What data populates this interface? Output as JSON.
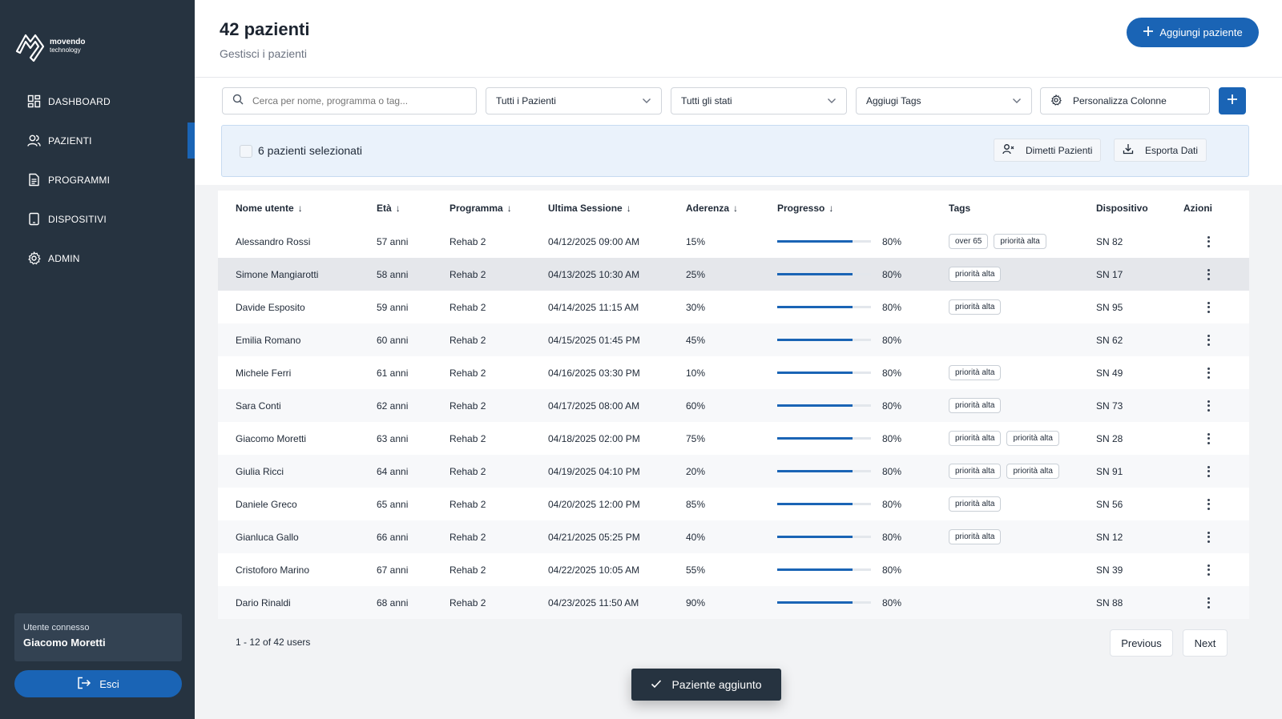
{
  "brand": {
    "name": "movendo",
    "sub": "technology"
  },
  "sidebar": {
    "items": [
      {
        "label": "DASHBOARD",
        "icon": "dashboard-icon"
      },
      {
        "label": "PAZIENTI",
        "icon": "users-icon",
        "active": true
      },
      {
        "label": "PROGRAMMI",
        "icon": "document-icon"
      },
      {
        "label": "DISPOSITIVI",
        "icon": "tablet-icon"
      },
      {
        "label": "ADMIN",
        "icon": "gear-icon"
      }
    ],
    "user_label": "Utente connesso",
    "user_name": "Giacomo Moretti",
    "logout_label": "Esci"
  },
  "header": {
    "title": "42 pazienti",
    "subtitle": "Gestisci i pazienti",
    "add_label": "Aggiungi paziente"
  },
  "filters": {
    "search_placeholder": "Cerca per nome, programma o tag...",
    "patients_select": "Tutti i Pazienti",
    "status_select": "Tutti gli stati",
    "tags_select": "Aggiugi Tags",
    "columns_label": "Personalizza Colonne"
  },
  "selection": {
    "text": "6 pazienti selezionati",
    "discharge_label": "Dimetti Pazienti",
    "export_label": "Esporta Dati"
  },
  "table": {
    "headers": {
      "name": "Nome utente",
      "age": "Età",
      "program": "Programma",
      "last_session": "Ultima Sessione",
      "adherence": "Aderenza",
      "progress": "Progresso",
      "tags": "Tags",
      "device": "Dispositivo",
      "actions": "Azioni"
    },
    "rows": [
      {
        "name": "Alessandro Rossi",
        "age": "57 anni",
        "program": "Rehab 2",
        "session": "04/12/2025 09:00 AM",
        "adherence": "15%",
        "progress": 0.8,
        "progress_label": "80%",
        "tags": [
          "over 65",
          "priorità alta"
        ],
        "device": "SN 82"
      },
      {
        "name": "Simone Mangiarotti",
        "age": "58 anni",
        "program": "Rehab 2",
        "session": "04/13/2025 10:30 AM",
        "adherence": "25%",
        "progress": 0.8,
        "progress_label": "80%",
        "tags": [
          "priorità alta"
        ],
        "device": "SN 17",
        "highlight": true
      },
      {
        "name": "Davide Esposito",
        "age": "59 anni",
        "program": "Rehab 2",
        "session": "04/14/2025 11:15 AM",
        "adherence": "30%",
        "progress": 0.8,
        "progress_label": "80%",
        "tags": [
          "priorità alta"
        ],
        "device": "SN 95"
      },
      {
        "name": "Emilia Romano",
        "age": "60 anni",
        "program": "Rehab 2",
        "session": "04/15/2025 01:45 PM",
        "adherence": "45%",
        "progress": 0.8,
        "progress_label": "80%",
        "tags": [],
        "device": "SN 62"
      },
      {
        "name": "Michele Ferri",
        "age": "61 anni",
        "program": "Rehab 2",
        "session": "04/16/2025 03:30 PM",
        "adherence": "10%",
        "progress": 0.8,
        "progress_label": "80%",
        "tags": [
          "priorità alta"
        ],
        "device": "SN 49"
      },
      {
        "name": "Sara Conti",
        "age": "62 anni",
        "program": "Rehab 2",
        "session": "04/17/2025 08:00 AM",
        "adherence": "60%",
        "progress": 0.8,
        "progress_label": "80%",
        "tags": [
          "priorità alta"
        ],
        "device": "SN 73"
      },
      {
        "name": "Giacomo Moretti",
        "age": "63 anni",
        "program": "Rehab 2",
        "session": "04/18/2025 02:00 PM",
        "adherence": "75%",
        "progress": 0.8,
        "progress_label": "80%",
        "tags": [
          "priorità alta",
          "priorità alta"
        ],
        "device": "SN 28"
      },
      {
        "name": "Giulia Ricci",
        "age": "64 anni",
        "program": "Rehab 2",
        "session": "04/19/2025 04:10 PM",
        "adherence": "20%",
        "progress": 0.8,
        "progress_label": "80%",
        "tags": [
          "priorità alta",
          "priorità alta"
        ],
        "device": "SN 91"
      },
      {
        "name": "Daniele Greco",
        "age": "65 anni",
        "program": "Rehab 2",
        "session": "04/20/2025 12:00 PM",
        "adherence": "85%",
        "progress": 0.8,
        "progress_label": "80%",
        "tags": [
          "priorità alta"
        ],
        "device": "SN 56"
      },
      {
        "name": "Gianluca Gallo",
        "age": "66 anni",
        "program": "Rehab 2",
        "session": "04/21/2025 05:25 PM",
        "adherence": "40%",
        "progress": 0.8,
        "progress_label": "80%",
        "tags": [
          "priorità alta"
        ],
        "device": "SN 12"
      },
      {
        "name": "Cristoforo Marino",
        "age": "67 anni",
        "program": "Rehab 2",
        "session": "04/22/2025 10:05 AM",
        "adherence": "55%",
        "progress": 0.8,
        "progress_label": "80%",
        "tags": [],
        "device": "SN 39"
      },
      {
        "name": "Dario Rinaldi",
        "age": "68 anni",
        "program": "Rehab 2",
        "session": "04/23/2025 11:50 AM",
        "adherence": "90%",
        "progress": 0.8,
        "progress_label": "80%",
        "tags": [],
        "device": "SN 88"
      }
    ]
  },
  "pagination": {
    "info": "1 - 12 of 42 users",
    "previous": "Previous",
    "next": "Next"
  },
  "toast": {
    "text": "Paziente aggiunto"
  },
  "colors": {
    "sidebar": "#263340",
    "accent": "#1a64b5",
    "selection_bg": "#eaf2fb"
  }
}
